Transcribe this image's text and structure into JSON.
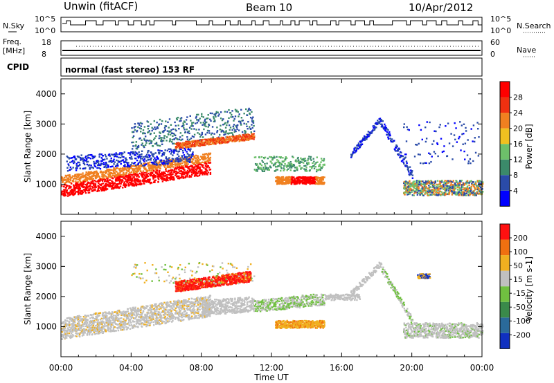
{
  "header": {
    "radar": "Unwin (fitACF)",
    "beam": "Beam 10",
    "date": "10/Apr/2012"
  },
  "param_panels": {
    "nsky_label": "N.Sky",
    "nsky_ticks": [
      "10^5",
      "10^0"
    ],
    "nsearch_label": "N.Search",
    "nsearch_ticks": [
      "10^5",
      "10^0"
    ],
    "freq_label": "Freq.",
    "freq_unit": "[MHz]",
    "freq_ticks": [
      "18",
      "8"
    ],
    "nave_label": "Nave",
    "nave_ticks": [
      "60",
      "0"
    ],
    "cpid_label": "CPID",
    "cpid_text": "normal (fast stereo) 153 RF"
  },
  "chart_data": [
    {
      "type": "heatmap",
      "name": "power",
      "ylabel": "Slant Range [km]",
      "xlabel": "Time UT",
      "ylim": [
        0,
        4500
      ],
      "xlim_hours": [
        0,
        24
      ],
      "yticks": [
        "4000",
        "3000",
        "2000",
        "1000"
      ],
      "xticks": [
        "00:00",
        "04:00",
        "08:00",
        "12:00",
        "16:00",
        "20:00",
        "00:00"
      ],
      "colorbar": {
        "label": "Power [dB]",
        "ticks": [
          "28",
          "24",
          "20",
          "16",
          "12",
          "8",
          "4"
        ],
        "colors": [
          "#0000ff",
          "#2a4ba8",
          "#3b8a6a",
          "#6dc06a",
          "#f0c020",
          "#f08020",
          "#f03010",
          "#ff0000"
        ]
      }
    },
    {
      "type": "heatmap",
      "name": "velocity",
      "ylabel": "Slant Range [km]",
      "xlabel": "Time UT",
      "ylim": [
        0,
        4500
      ],
      "xlim_hours": [
        0,
        24
      ],
      "yticks": [
        "4000",
        "3000",
        "2000",
        "1000"
      ],
      "xticks": [
        "00:00",
        "04:00",
        "08:00",
        "12:00",
        "16:00",
        "20:00",
        "00:00"
      ],
      "colorbar": {
        "label": "Velocity [m s-1]",
        "ticks": [
          "200",
          "100",
          "50",
          "15",
          "-15",
          "-50",
          "-100",
          "-200"
        ],
        "colors": [
          "#1030c0",
          "#2a6a9a",
          "#3a8a4a",
          "#70c040",
          "#c0c0c0",
          "#f0b020",
          "#f07010",
          "#ff1010"
        ]
      }
    }
  ]
}
